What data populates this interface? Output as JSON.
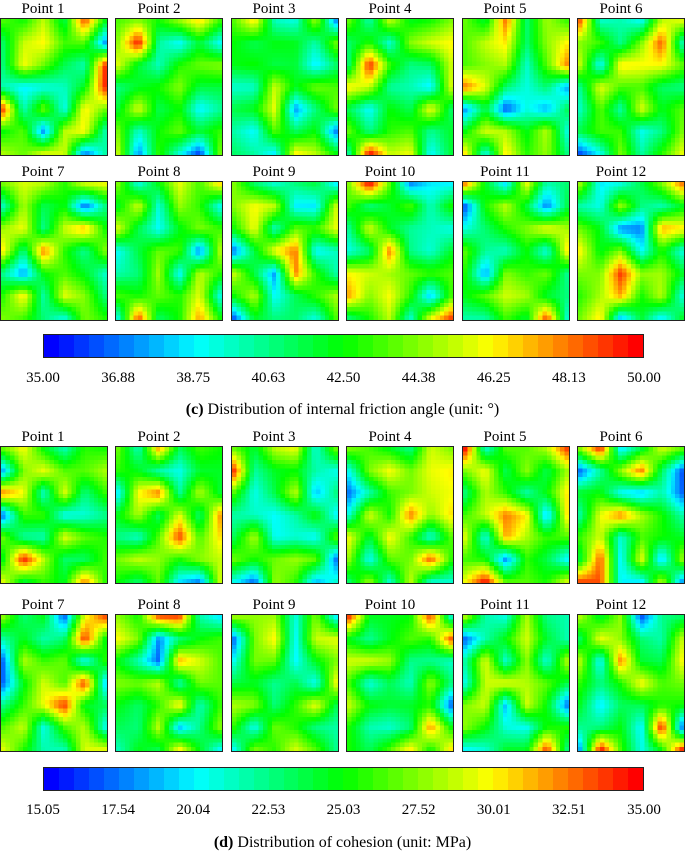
{
  "panels": [
    {
      "id": "c",
      "point_labels": [
        "Point 1",
        "Point 2",
        "Point 3",
        "Point 4",
        "Point 5",
        "Point 6",
        "Point 7",
        "Point 8",
        "Point 9",
        "Point 10",
        "Point 11",
        "Point 12"
      ],
      "colorbar": {
        "min": 35.0,
        "max": 50.0,
        "ticks": [
          "35.00",
          "36.88",
          "38.75",
          "40.63",
          "42.50",
          "44.38",
          "46.25",
          "48.13",
          "50.00"
        ]
      },
      "caption": {
        "letter": "(c)",
        "text": " Distribution of internal friction angle (unit: °)"
      }
    },
    {
      "id": "d",
      "point_labels": [
        "Point 1",
        "Point 2",
        "Point 3",
        "Point 4",
        "Point 5",
        "Point 6",
        "Point 7",
        "Point 8",
        "Point 9",
        "Point 10",
        "Point 11",
        "Point 12"
      ],
      "colorbar": {
        "min": 15.05,
        "max": 35.0,
        "ticks": [
          "15.05",
          "17.54",
          "20.04",
          "22.53",
          "25.03",
          "27.52",
          "30.01",
          "32.51",
          "35.00"
        ]
      },
      "caption": {
        "letter": "(d)",
        "text": " Distribution of cohesion (unit: MPa)"
      }
    }
  ],
  "colormap": [
    "#0000ff",
    "#0080ff",
    "#00ffff",
    "#00ff80",
    "#00ff00",
    "#80ff00",
    "#ffff00",
    "#ff8000",
    "#ff0000"
  ]
}
